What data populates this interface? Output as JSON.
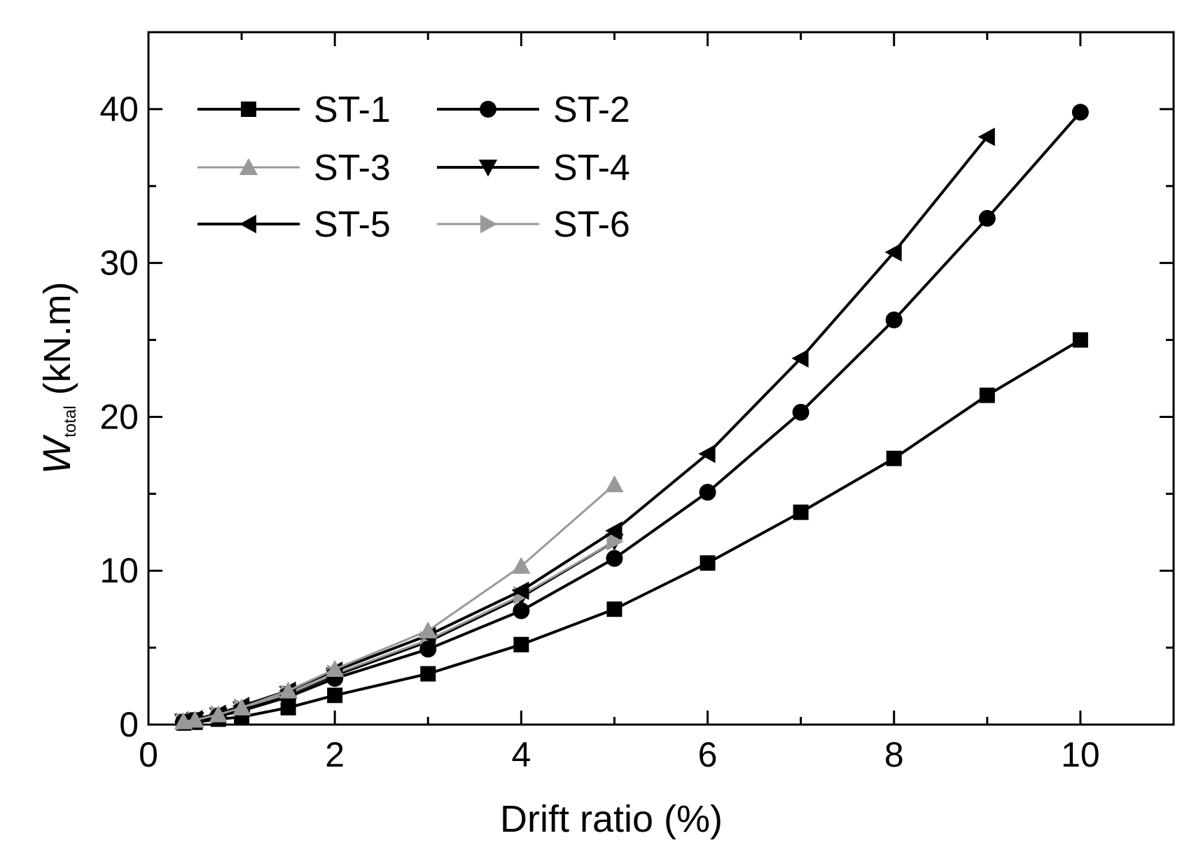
{
  "chart_data": {
    "type": "line",
    "title": "",
    "xlabel": "Drift ratio (%)",
    "ylabel": {
      "main": "W",
      "subscript": "total",
      "units": " (kN.m)"
    },
    "xlim": [
      0,
      11
    ],
    "ylim": [
      0,
      45
    ],
    "xticks": [
      0,
      2,
      4,
      6,
      8,
      10
    ],
    "xticks_minor": [
      1,
      3,
      5,
      7,
      9
    ],
    "yticks": [
      0,
      10,
      20,
      30,
      40
    ],
    "yticks_minor": [
      5,
      15,
      25,
      35
    ],
    "grid": false,
    "legend_position": "top-left",
    "series": [
      {
        "name": "ST-1",
        "marker": "square",
        "color": "#000000",
        "x": [
          0.375,
          0.5,
          0.75,
          1,
          1.5,
          2,
          3,
          4,
          5,
          6,
          7,
          8,
          9,
          10
        ],
        "y": [
          0.1,
          0.15,
          0.35,
          0.5,
          1.1,
          1.9,
          3.3,
          5.2,
          7.5,
          10.5,
          13.8,
          17.3,
          21.4,
          25.0
        ]
      },
      {
        "name": "ST-2",
        "marker": "circle",
        "color": "#000000",
        "x": [
          0.375,
          0.5,
          0.75,
          1,
          1.5,
          2,
          3,
          4,
          5,
          6,
          7,
          8,
          9,
          10
        ],
        "y": [
          0.15,
          0.25,
          0.55,
          0.9,
          1.8,
          3.0,
          4.9,
          7.4,
          10.8,
          15.1,
          20.3,
          26.3,
          32.9,
          39.8
        ]
      },
      {
        "name": "ST-3",
        "marker": "triangle-up",
        "color": "#999999",
        "x": [
          0.375,
          0.5,
          0.75,
          1,
          1.5,
          2,
          3,
          4,
          5
        ],
        "y": [
          0.2,
          0.3,
          0.65,
          1.1,
          2.2,
          3.6,
          6.1,
          10.3,
          15.6
        ]
      },
      {
        "name": "ST-4",
        "marker": "triangle-down",
        "color": "#000000",
        "x": [
          0.375,
          0.5,
          0.75,
          1,
          1.5,
          2,
          3,
          4,
          5
        ],
        "y": [
          0.2,
          0.3,
          0.6,
          1.0,
          2.0,
          3.2,
          5.4,
          8.3,
          11.9
        ]
      },
      {
        "name": "ST-5",
        "marker": "triangle-left",
        "color": "#000000",
        "x": [
          0.375,
          0.5,
          0.75,
          1,
          1.5,
          2,
          3,
          4,
          5,
          6,
          7,
          8,
          9
        ],
        "y": [
          0.2,
          0.35,
          0.7,
          1.2,
          2.2,
          3.5,
          5.8,
          8.7,
          12.6,
          17.6,
          23.8,
          30.7,
          38.2
        ]
      },
      {
        "name": "ST-6",
        "marker": "triangle-right",
        "color": "#999999",
        "x": [
          0.375,
          0.5,
          0.75,
          1,
          1.5,
          2,
          3,
          4,
          5
        ],
        "y": [
          0.2,
          0.3,
          0.65,
          1.1,
          2.0,
          3.3,
          5.5,
          8.4,
          11.9
        ]
      }
    ]
  }
}
